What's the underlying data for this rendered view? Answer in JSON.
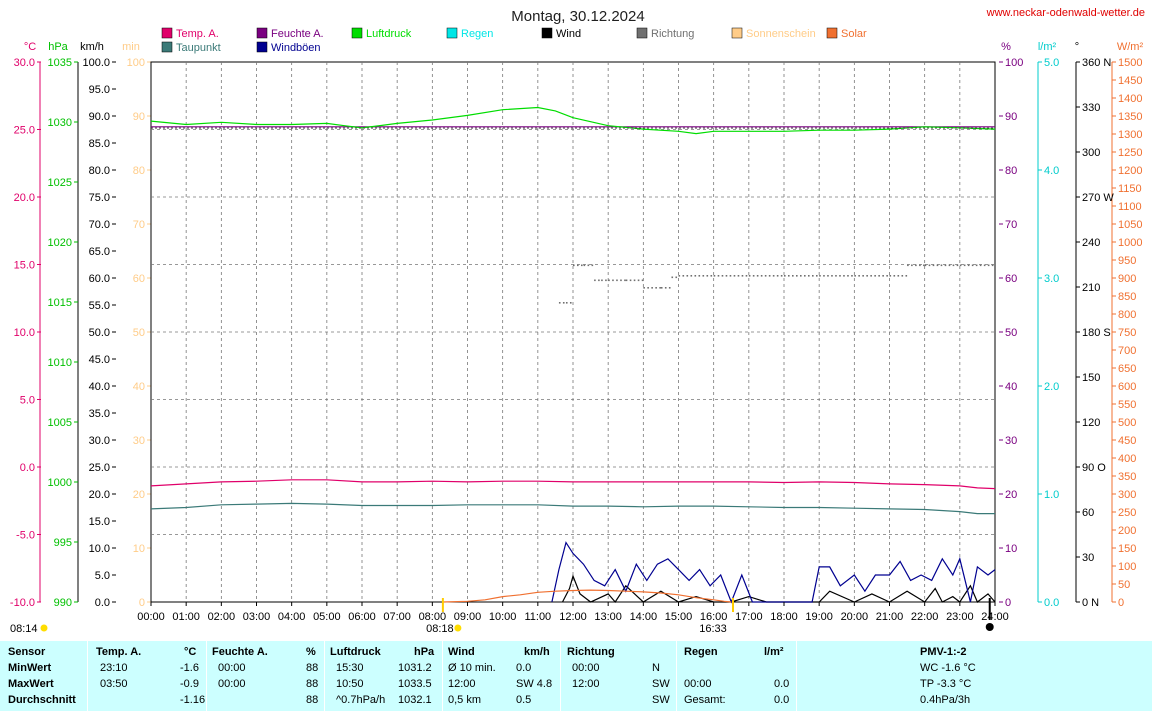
{
  "header": {
    "title": "Montag, 30.12.2024",
    "site": "www.neckar-odenwald-wetter.de"
  },
  "legend": [
    {
      "label": "Temp. A.",
      "color": "#e0006a"
    },
    {
      "label": "Taupunkt",
      "color": "#3b7a78"
    },
    {
      "label": "Feuchte A.",
      "color": "#7a0080"
    },
    {
      "label": "Windböen",
      "color": "#000090"
    },
    {
      "label": "Luftdruck",
      "color": "#00dd00"
    },
    {
      "label": "Regen",
      "color": "#00e6e6"
    },
    {
      "label": "Wind",
      "color": "#000000"
    },
    {
      "label": "Richtung",
      "color": "#707070"
    },
    {
      "label": "Sonnenschein",
      "color": "#ffcc88"
    },
    {
      "label": "Solar",
      "color": "#f07030"
    }
  ],
  "axes": {
    "temp": {
      "unit": "°C",
      "color": "#e0006a",
      "ticks": [
        "30.0",
        "25.0",
        "20.0",
        "15.0",
        "10.0",
        "5.0",
        "0.0",
        "-5.0",
        "-10.0"
      ]
    },
    "pressure": {
      "unit": "hPa",
      "color": "#00c000",
      "ticks": [
        "1035",
        "1030",
        "1025",
        "1020",
        "1015",
        "1010",
        "1005",
        "1000",
        "995",
        "990"
      ]
    },
    "wind": {
      "unit": "km/h",
      "color": "#000000",
      "ticks": [
        "100.0",
        "95.0",
        "90.0",
        "85.0",
        "80.0",
        "75.0",
        "70.0",
        "65.0",
        "60.0",
        "55.0",
        "50.0",
        "45.0",
        "40.0",
        "35.0",
        "30.0",
        "25.0",
        "20.0",
        "15.0",
        "10.0",
        "5.0",
        "0.0"
      ]
    },
    "minutes": {
      "unit": "min",
      "color": "#ffcc88",
      "ticks": [
        "100",
        "90",
        "80",
        "70",
        "60",
        "50",
        "40",
        "30",
        "20",
        "10",
        "0"
      ]
    },
    "humidity": {
      "unit": "%",
      "color": "#7a0080",
      "ticks": [
        "100",
        "90",
        "80",
        "70",
        "60",
        "50",
        "40",
        "30",
        "20",
        "10",
        "0"
      ]
    },
    "rain": {
      "unit": "l/m²",
      "color": "#00cccc",
      "ticks": [
        "5.0",
        "4.0",
        "3.0",
        "2.0",
        "1.0",
        "0.0"
      ]
    },
    "direction": {
      "unit": "°",
      "color": "#000000",
      "ticks": [
        {
          "v": 360,
          "t": "360 N"
        },
        {
          "v": 330,
          "t": "330"
        },
        {
          "v": 300,
          "t": "300"
        },
        {
          "v": 270,
          "t": "270 W"
        },
        {
          "v": 240,
          "t": "240"
        },
        {
          "v": 210,
          "t": "210"
        },
        {
          "v": 180,
          "t": "180 S"
        },
        {
          "v": 150,
          "t": "150"
        },
        {
          "v": 120,
          "t": "120"
        },
        {
          "v": 90,
          "t": "90 O"
        },
        {
          "v": 60,
          "t": "60"
        },
        {
          "v": 30,
          "t": "30"
        },
        {
          "v": 0,
          "t": "0 N"
        }
      ]
    },
    "solar": {
      "unit": "W/m²",
      "color": "#f07030",
      "ticks": [
        "1500",
        "1450",
        "1400",
        "1350",
        "1300",
        "1250",
        "1200",
        "1150",
        "1100",
        "1050",
        "1000",
        "950",
        "900",
        "850",
        "800",
        "750",
        "700",
        "650",
        "600",
        "550",
        "500",
        "450",
        "400",
        "350",
        "300",
        "250",
        "200",
        "150",
        "100",
        "50",
        "0"
      ]
    }
  },
  "chart_data": {
    "type": "line",
    "x_labels": [
      "00:00",
      "01:00",
      "02:00",
      "03:00",
      "04:00",
      "05:00",
      "06:00",
      "07:00",
      "08:00",
      "09:00",
      "10:00",
      "11:00",
      "12:00",
      "13:00",
      "14:00",
      "15:00",
      "16:00",
      "17:00",
      "18:00",
      "19:00",
      "20:00",
      "21:00",
      "22:00",
      "23:00",
      "24:00"
    ],
    "x_range_hours": [
      0,
      24
    ],
    "grid": true,
    "markers": {
      "sunrise": "08:18",
      "sunset": "16:33",
      "prev_sunset": "08:14"
    },
    "series": [
      {
        "name": "Temp. A.",
        "axis": "temp",
        "color": "#e0006a",
        "x": [
          0,
          1,
          2,
          3,
          4,
          5,
          6,
          7,
          8,
          9,
          10,
          11,
          12,
          13,
          14,
          15,
          16,
          17,
          18,
          19,
          20,
          21,
          22,
          23,
          23.5,
          24
        ],
        "y": [
          -1.4,
          -1.25,
          -1.1,
          -1.05,
          -0.95,
          -0.95,
          -1.1,
          -1.1,
          -1.05,
          -1.1,
          -1.05,
          -1.05,
          -1.1,
          -1.1,
          -1.1,
          -1.1,
          -1.1,
          -1.1,
          -1.15,
          -1.1,
          -1.15,
          -1.25,
          -1.3,
          -1.4,
          -1.55,
          -1.6
        ]
      },
      {
        "name": "Taupunkt",
        "axis": "temp",
        "color": "#3b7a78",
        "x": [
          0,
          1,
          2,
          3,
          4,
          5,
          6,
          7,
          8,
          9,
          10,
          11,
          12,
          13,
          14,
          15,
          16,
          17,
          18,
          19,
          20,
          21,
          22,
          23,
          23.5,
          24
        ],
        "y": [
          -3.1,
          -3.0,
          -2.8,
          -2.75,
          -2.7,
          -2.75,
          -2.85,
          -2.85,
          -2.85,
          -2.8,
          -2.8,
          -2.8,
          -2.9,
          -2.9,
          -2.95,
          -2.9,
          -2.9,
          -2.95,
          -3.0,
          -3.0,
          -3.05,
          -3.1,
          -3.15,
          -3.3,
          -3.45,
          -3.45
        ]
      },
      {
        "name": "Feuchte A.",
        "axis": "humidity",
        "color": "#7a0080",
        "x": [
          0,
          24
        ],
        "y": [
          88,
          88
        ]
      },
      {
        "name": "Luftdruck",
        "axis": "pressure",
        "color": "#00dd00",
        "x": [
          0,
          1,
          2,
          3,
          4,
          5,
          5.5,
          6,
          7,
          8,
          9,
          10,
          11,
          11.5,
          12,
          13,
          14,
          15,
          15.5,
          16,
          17,
          18,
          19,
          20,
          21,
          22,
          23,
          24
        ],
        "y": [
          1032.3,
          1032.0,
          1032.2,
          1032.0,
          1032.0,
          1032.1,
          1031.9,
          1031.7,
          1032.1,
          1032.4,
          1032.8,
          1033.3,
          1033.5,
          1033.2,
          1032.6,
          1031.9,
          1031.6,
          1031.4,
          1031.2,
          1031.4,
          1031.4,
          1031.4,
          1031.5,
          1031.5,
          1031.6,
          1031.8,
          1031.7,
          1031.6
        ]
      },
      {
        "name": "Wind",
        "axis": "wind",
        "color": "#000000",
        "x": [
          11.7,
          11.9,
          12.0,
          12.2,
          12.5,
          13.0,
          13.2,
          13.5,
          14.0,
          14.5,
          15.0,
          15.5,
          16.0,
          16.5,
          17.0,
          17.5,
          18.0,
          19.0,
          19.3,
          20.0,
          20.5,
          21.0,
          21.5,
          22.0,
          22.3,
          22.5,
          22.8,
          23.0,
          23.3,
          23.5,
          23.8,
          24.0
        ],
        "y": [
          0,
          2.5,
          4.8,
          1.5,
          0,
          1.5,
          0,
          3.0,
          0,
          2.0,
          0,
          1.0,
          0,
          0,
          1.0,
          0,
          0,
          0,
          2.0,
          0,
          1.5,
          0,
          2.0,
          0,
          2.5,
          0,
          1.0,
          0,
          3.0,
          0,
          1.5,
          0
        ]
      },
      {
        "name": "Windböen",
        "axis": "wind",
        "color": "#000090",
        "x": [
          11.4,
          11.6,
          11.8,
          12.0,
          12.3,
          12.6,
          12.9,
          13.2,
          13.5,
          13.8,
          14.1,
          14.4,
          14.7,
          15.0,
          15.3,
          15.6,
          15.9,
          16.2,
          16.5,
          16.8,
          17.1,
          18.8,
          19.0,
          19.3,
          19.6,
          20.0,
          20.3,
          20.6,
          21.0,
          21.3,
          21.6,
          21.9,
          22.2,
          22.5,
          22.8,
          23.0,
          23.3,
          23.5,
          23.8,
          24.0
        ],
        "y": [
          0,
          6,
          11,
          9,
          7,
          4,
          3,
          6,
          2,
          7,
          4,
          7,
          8,
          6,
          4,
          6,
          3,
          5,
          0,
          5,
          0,
          0,
          6.5,
          6.5,
          3,
          5,
          2,
          5,
          5,
          7.5,
          4,
          5,
          4,
          8,
          5,
          8,
          0,
          6.5,
          5,
          6
        ]
      },
      {
        "name": "Richtung",
        "axis": "direction",
        "color": "#707070",
        "x": [
          11.6,
          11.8,
          12.0,
          12.3,
          12.6,
          12.8,
          13.0,
          13.5,
          14.0,
          14.5,
          14.8,
          15.0,
          16.0,
          17.0,
          18.0,
          19.0,
          20.0,
          21.0,
          21.5,
          22.0,
          23.0,
          24.0
        ],
        "y": [
          200,
          200,
          225,
          225,
          215,
          215,
          215,
          215,
          210,
          210,
          217,
          218,
          218,
          218,
          218,
          218,
          218,
          218,
          225,
          225,
          225,
          225
        ]
      },
      {
        "name": "Solar",
        "axis": "solar",
        "color": "#f07030",
        "x": [
          8.3,
          9.0,
          9.5,
          10.0,
          10.5,
          11.0,
          11.5,
          12.0,
          12.5,
          13.0,
          13.5,
          14.0,
          14.5,
          15.0,
          15.5,
          16.0,
          16.3,
          16.5
        ],
        "y": [
          0,
          2,
          6,
          15,
          20,
          27,
          30,
          32,
          33,
          32,
          30,
          28,
          25,
          20,
          12,
          6,
          2,
          0
        ]
      }
    ]
  },
  "stats": {
    "headers": {
      "sensor": "Sensor",
      "temp": "Temp. A.",
      "temp_unit": "°C",
      "hum": "Feuchte A.",
      "hum_unit": "%",
      "press": "Luftdruck",
      "press_unit": "hPa",
      "wind": "Wind",
      "wind_unit": "km/h",
      "dir": "Richtung",
      "rain": "Regen",
      "rain_unit": "l/m²",
      "pmv": "PMV-1:-2"
    },
    "rows": [
      {
        "label": "MinWert",
        "temp_time": "23:10",
        "temp": "-1.6",
        "hum_time": "00:00",
        "hum": "88",
        "press_time": "15:30",
        "press": "1031.2",
        "wind_time": "Ø 10 min.",
        "wind": "0.0",
        "dir_time": "00:00",
        "dir": "N",
        "rain_time": "",
        "rain": "",
        "pmv": "WC -1.6 °C"
      },
      {
        "label": "MaxWert",
        "temp_time": "03:50",
        "temp": "-0.9",
        "hum_time": "00:00",
        "hum": "88",
        "press_time": "10:50",
        "press": "1033.5",
        "wind_time": "12:00",
        "wind": "SW 4.8",
        "dir_time": "12:00",
        "dir": "SW",
        "rain_time": "00:00",
        "rain": "0.0",
        "pmv": "TP -3.3 °C"
      },
      {
        "label": "Durchschnitt",
        "temp_time": "",
        "temp": "-1.16",
        "hum_time": "",
        "hum": "88",
        "press_time": "^0.7hPa/h",
        "press": "1032.1",
        "wind_time": "0,5 km",
        "wind": "0.5",
        "dir_time": "",
        "dir": "SW",
        "rain_time": "Gesamt:",
        "rain": "0.0",
        "pmv": "0.4hPa/3h"
      }
    ]
  }
}
